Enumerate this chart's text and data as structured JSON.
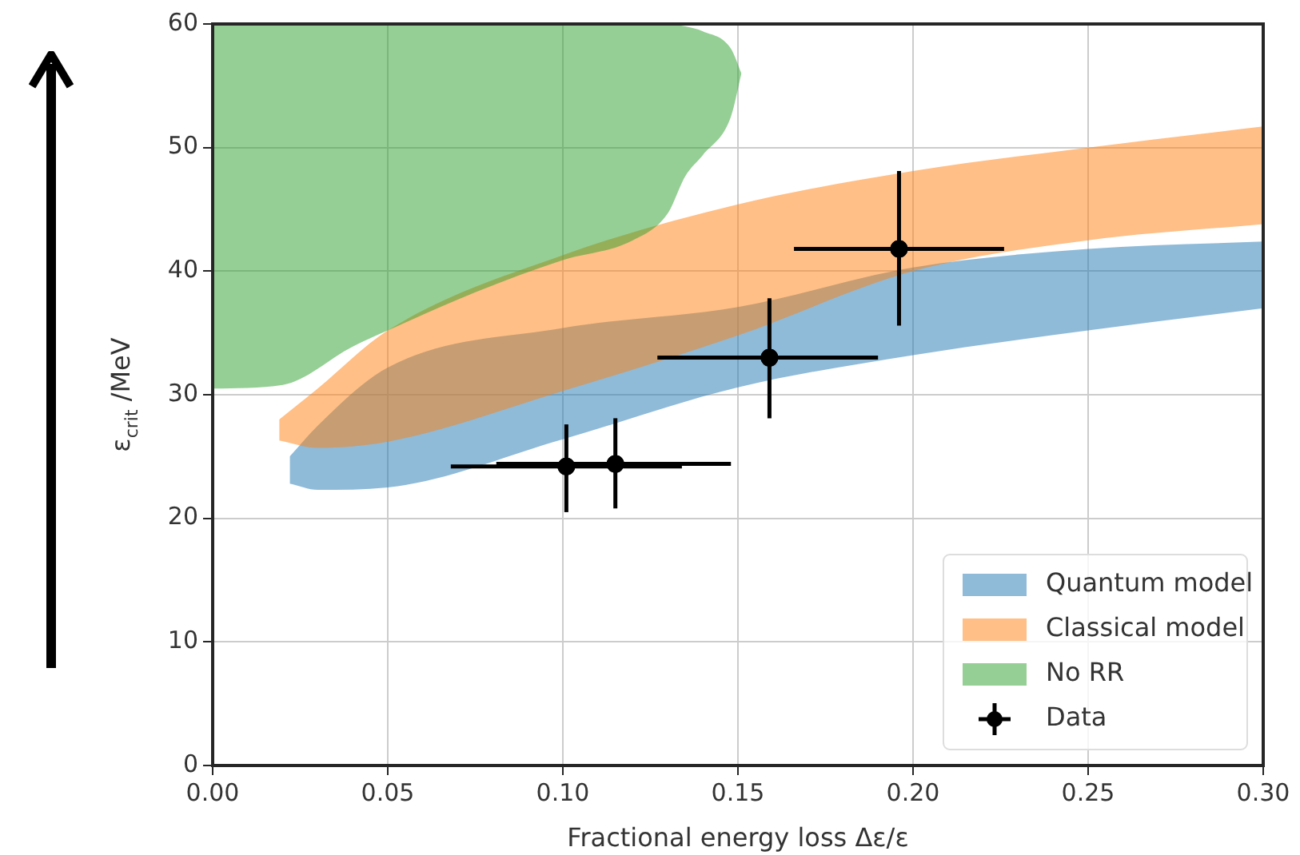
{
  "chart_data": {
    "type": "area",
    "xlabel": "Fractional energy loss Δε/ε",
    "ylabel": "ε$_{crit}$ /MeV",
    "xlim": [
      0,
      0.3
    ],
    "ylim": [
      0,
      60
    ],
    "xticks": [
      {
        "value": 0,
        "label": "0.00"
      },
      {
        "value": 0.05,
        "label": "0.05"
      },
      {
        "value": 0.1,
        "label": "0.10"
      },
      {
        "value": 0.15,
        "label": "0.15"
      },
      {
        "value": 0.2,
        "label": "0.20"
      },
      {
        "value": 0.25,
        "label": "0.25"
      },
      {
        "value": 0.3,
        "label": "0.30"
      }
    ],
    "yticks": [
      0,
      10,
      20,
      30,
      40,
      50,
      60
    ],
    "grid": true,
    "legend": "bottom right",
    "series": [
      {
        "name": "Quantum model",
        "type": "area",
        "color": "#1f77b4",
        "x": [
          0.022,
          0.03,
          0.05,
          0.1,
          0.15,
          0.2,
          0.25,
          0.3
        ],
        "values": [
          null,
          null,
          null,
          null,
          null,
          null,
          null,
          null
        ],
        "upper": [
          25,
          27.5,
          32.2,
          35.4,
          37.1,
          40.3,
          41.8,
          42.4
        ],
        "lower": [
          22.8,
          22.3,
          22.5,
          26.4,
          30.6,
          33.2,
          35.2,
          37
        ]
      },
      {
        "name": "Classical model",
        "type": "area",
        "color": "#ff7f0e",
        "x": [
          0.019,
          0.03,
          0.05,
          0.1,
          0.15,
          0.2,
          0.25,
          0.3
        ],
        "values": [
          null,
          null,
          null,
          null,
          null,
          null,
          null,
          null
        ],
        "upper": [
          28,
          30.5,
          35.2,
          41.3,
          45.4,
          48.1,
          50,
          51.7
        ],
        "lower": [
          26.3,
          25.7,
          26.2,
          30.3,
          34.8,
          40,
          42.5,
          43.8
        ]
      },
      {
        "name": "No RR",
        "type": "area",
        "color": "#2ca02c",
        "x": [
          0,
          0.02,
          0.04,
          0.05,
          0.075,
          0.1,
          0.12,
          0.13,
          0.135,
          0.14,
          0.148,
          0.151
        ],
        "values": [
          null,
          null,
          null,
          null,
          null,
          null,
          null,
          null,
          null,
          null,
          null,
          null
        ],
        "upper": [
          60,
          60,
          60,
          60,
          60,
          60,
          60,
          60,
          59.8,
          59.4,
          58,
          56
        ],
        "lower": [
          30.5,
          30.8,
          33.9,
          35.2,
          38.3,
          40.9,
          42.5,
          44.7,
          47.7,
          49.4,
          52.5,
          56
        ]
      },
      {
        "name": "Data",
        "type": "scatter",
        "color": "#000000",
        "marker": "circle",
        "x": [
          0.101,
          0.115,
          0.159,
          0.196
        ],
        "values": [
          24.2,
          24.4,
          33,
          41.8
        ],
        "xerrors": [
          [
            0.068,
            0.134
          ],
          [
            0.081,
            0.148
          ],
          [
            0.127,
            0.19
          ],
          [
            0.166,
            0.226
          ]
        ],
        "errors": [
          [
            20.5,
            27.6
          ],
          [
            20.8,
            28.1
          ],
          [
            28.1,
            37.8
          ],
          [
            35.6,
            48.1
          ]
        ]
      }
    ]
  }
}
